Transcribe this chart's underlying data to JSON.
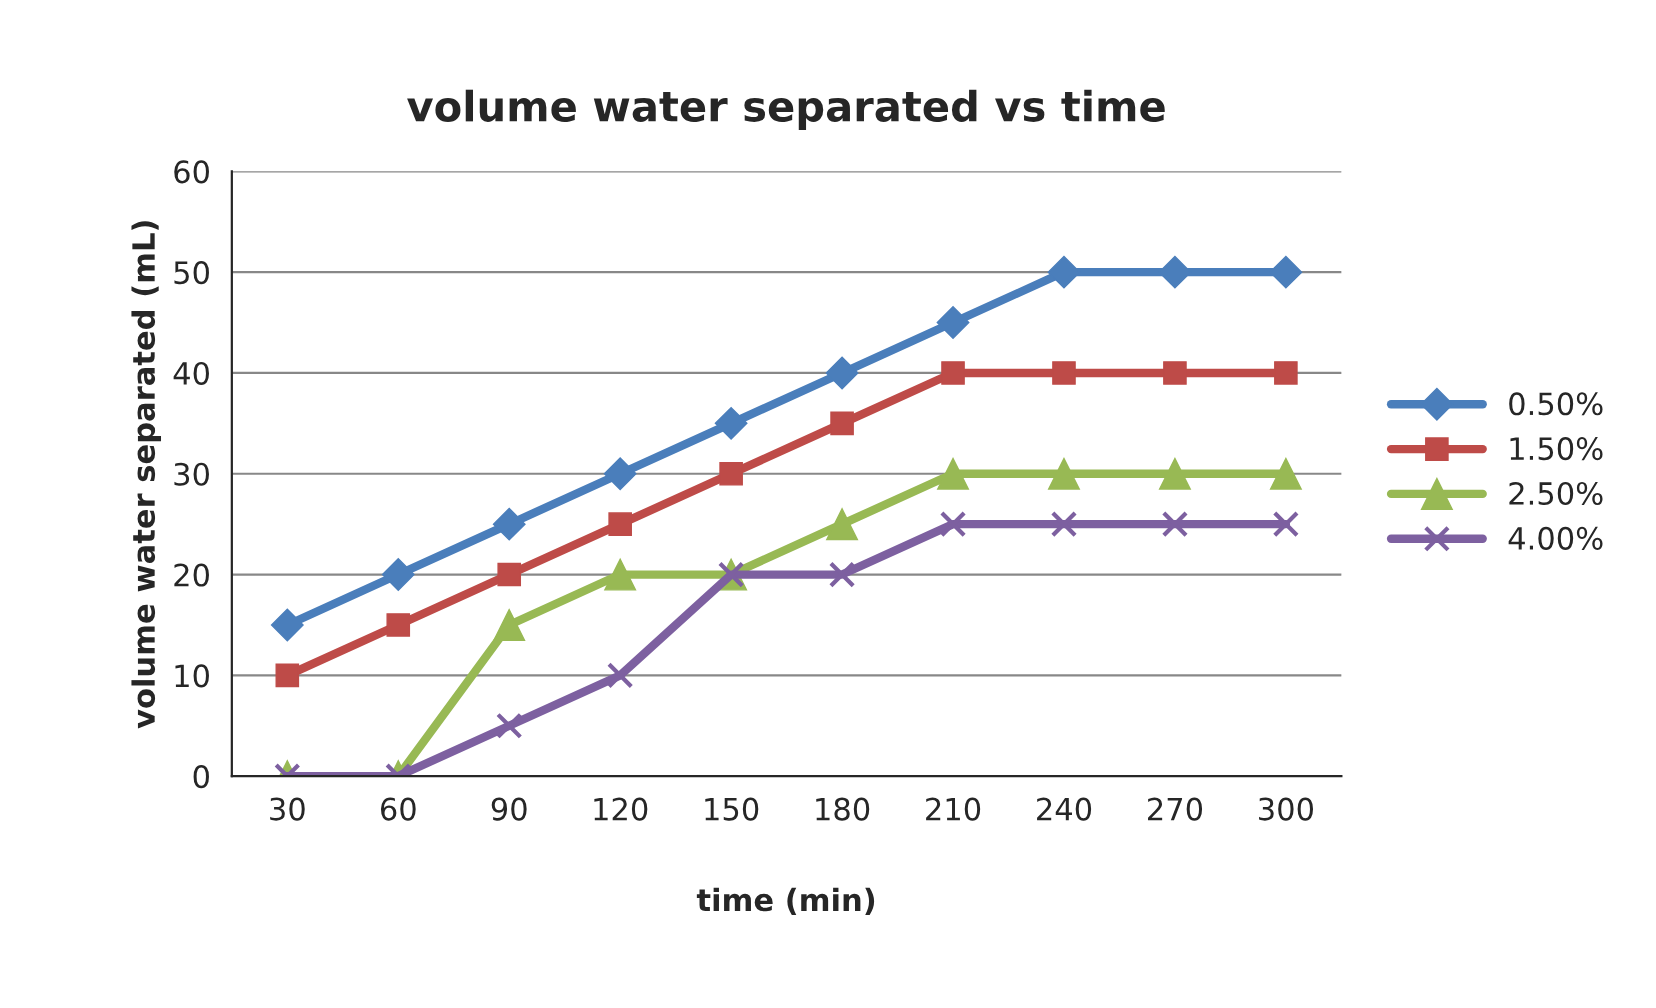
{
  "chart_data": {
    "type": "line",
    "title": "volume water separated vs time",
    "xlabel": "time (min)",
    "ylabel": "volume water separated (mL)",
    "categories": [
      "30",
      "60",
      "90",
      "120",
      "150",
      "180",
      "210",
      "240",
      "270",
      "300"
    ],
    "series": [
      {
        "name": "0.50%",
        "color": "#4a7ebb",
        "marker": "diamond",
        "values": [
          15,
          20,
          25,
          30,
          35,
          40,
          45,
          50,
          50,
          50
        ]
      },
      {
        "name": "1.50%",
        "color": "#be4b48",
        "marker": "square",
        "values": [
          10,
          15,
          20,
          25,
          30,
          35,
          40,
          40,
          40,
          40
        ]
      },
      {
        "name": "2.50%",
        "color": "#98b954",
        "marker": "triangle",
        "values": [
          0,
          0,
          15,
          20,
          20,
          25,
          30,
          30,
          30,
          30
        ]
      },
      {
        "name": "4.00%",
        "color": "#7d60a0",
        "marker": "cross",
        "values": [
          0,
          0,
          5,
          10,
          20,
          20,
          25,
          25,
          25,
          25
        ]
      }
    ],
    "ylim": [
      0,
      60
    ],
    "yticks": [
      0,
      10,
      20,
      30,
      40,
      50,
      60
    ],
    "grid": "y",
    "legend": "right",
    "line_style": "solid"
  }
}
